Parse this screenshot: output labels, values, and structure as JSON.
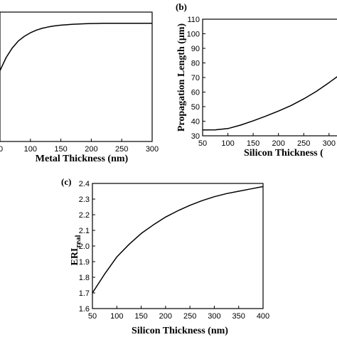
{
  "chart_data": [
    {
      "id": "a",
      "panel_label": "",
      "type": "line",
      "xlabel": "Metal Thickness (nm)",
      "ylabel": "",
      "xlim": [
        50,
        300
      ],
      "xticks": [
        "100",
        "150",
        "200",
        "250",
        "300"
      ],
      "xtick_leading": "0",
      "yticks": [],
      "series": [
        {
          "x": [
            50,
            60,
            70,
            80,
            90,
            100,
            110,
            120,
            130,
            140,
            150,
            160,
            170,
            180,
            190,
            200,
            210,
            220,
            240,
            260,
            280,
            300
          ],
          "y": [
            0.2,
            0.42,
            0.58,
            0.7,
            0.78,
            0.84,
            0.885,
            0.918,
            0.94,
            0.956,
            0.968,
            0.977,
            0.984,
            0.989,
            0.993,
            0.996,
            0.998,
            1.0,
            1.0,
            1.0,
            1.0,
            1.0
          ]
        }
      ]
    },
    {
      "id": "b",
      "panel_label": "(b)",
      "type": "line",
      "xlabel": "Silicon Thickness (",
      "ylabel": "Propagation Length (μm)",
      "xlim": [
        50,
        320
      ],
      "ylim": [
        30,
        110
      ],
      "xticks": [
        "50",
        "100",
        "150",
        "200",
        "250",
        "300"
      ],
      "yticks": [
        "30",
        "40",
        "50",
        "60",
        "70",
        "80",
        "90",
        "100",
        "110"
      ],
      "series": [
        {
          "x": [
            50,
            75,
            100,
            125,
            150,
            175,
            200,
            225,
            250,
            275,
            300,
            320
          ],
          "y": [
            34.0,
            34.1,
            35.0,
            37.3,
            40.3,
            43.5,
            47.0,
            50.8,
            55.3,
            60.5,
            66.5,
            71.5
          ]
        }
      ]
    },
    {
      "id": "c",
      "panel_label": "(c)",
      "type": "line",
      "xlabel": "Silicon Thickness (nm)",
      "ylabel": "ERI",
      "ylabel_sub": "real",
      "xlim": [
        50,
        400
      ],
      "ylim": [
        1.6,
        2.4
      ],
      "xticks": [
        "50",
        "100",
        "150",
        "200",
        "250",
        "300",
        "350",
        "400"
      ],
      "yticks": [
        "1.6",
        "1.7",
        "1.8",
        "1.9",
        "2.0",
        "2.1",
        "2.2",
        "2.3",
        "2.4"
      ],
      "series": [
        {
          "x": [
            50,
            75,
            100,
            125,
            150,
            175,
            200,
            225,
            250,
            275,
            300,
            325,
            350,
            375,
            400
          ],
          "y": [
            1.7,
            1.82,
            1.93,
            2.01,
            2.08,
            2.135,
            2.185,
            2.225,
            2.26,
            2.29,
            2.315,
            2.335,
            2.35,
            2.365,
            2.38
          ]
        }
      ]
    }
  ]
}
